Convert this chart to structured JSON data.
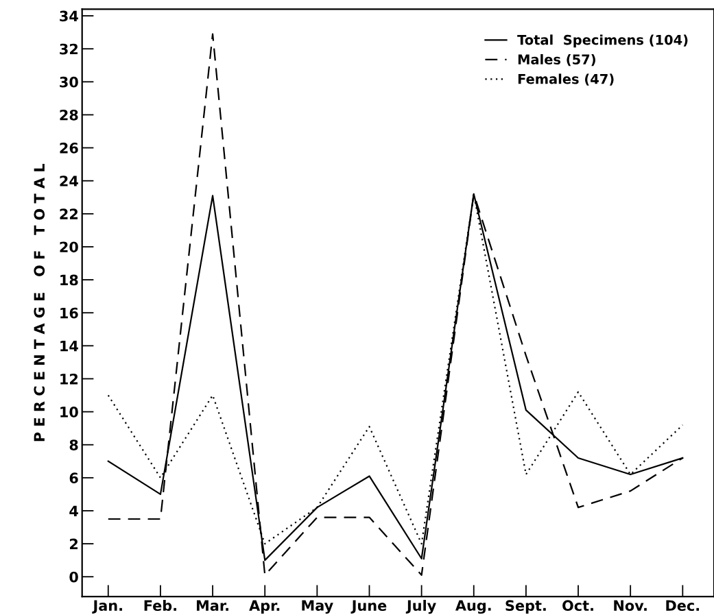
{
  "chart_data": {
    "type": "line",
    "ylabel": "P E R C E N T A G E   O F   T O T A L",
    "categories": [
      "Jan.",
      "Feb.",
      "Mar.",
      "Apr.",
      "May",
      "June",
      "July",
      "Aug.",
      "Sept.",
      "Oct.",
      "Nov.",
      "Dec."
    ],
    "series": [
      {
        "name": "Total  Specimens (104)",
        "color": "#000000",
        "line_style": "solid",
        "values": [
          7,
          5,
          23.1,
          1,
          4.2,
          6.1,
          1.1,
          23.2,
          10.1,
          7.2,
          6.2,
          7.2
        ]
      },
      {
        "name": "Males (57)",
        "color": "#000000",
        "line_style": "dashed",
        "values": [
          3.5,
          3.5,
          32.9,
          0.1,
          3.6,
          3.6,
          0.1,
          23.2,
          13.4,
          4.2,
          5.2,
          7.2
        ]
      },
      {
        "name": "Females (47)",
        "color": "#000000",
        "line_style": "dotted",
        "values": [
          11,
          6,
          11,
          2,
          4.2,
          9.1,
          2,
          23.2,
          6.2,
          11.2,
          6.2,
          9.2
        ]
      }
    ],
    "ylim": [
      -1.2,
      34.4
    ],
    "yticks": [
      0,
      2,
      4,
      6,
      8,
      10,
      12,
      14,
      16,
      18,
      20,
      22,
      24,
      26,
      28,
      30,
      32,
      34
    ],
    "grid": false,
    "legend": "top right",
    "marker": "none"
  }
}
